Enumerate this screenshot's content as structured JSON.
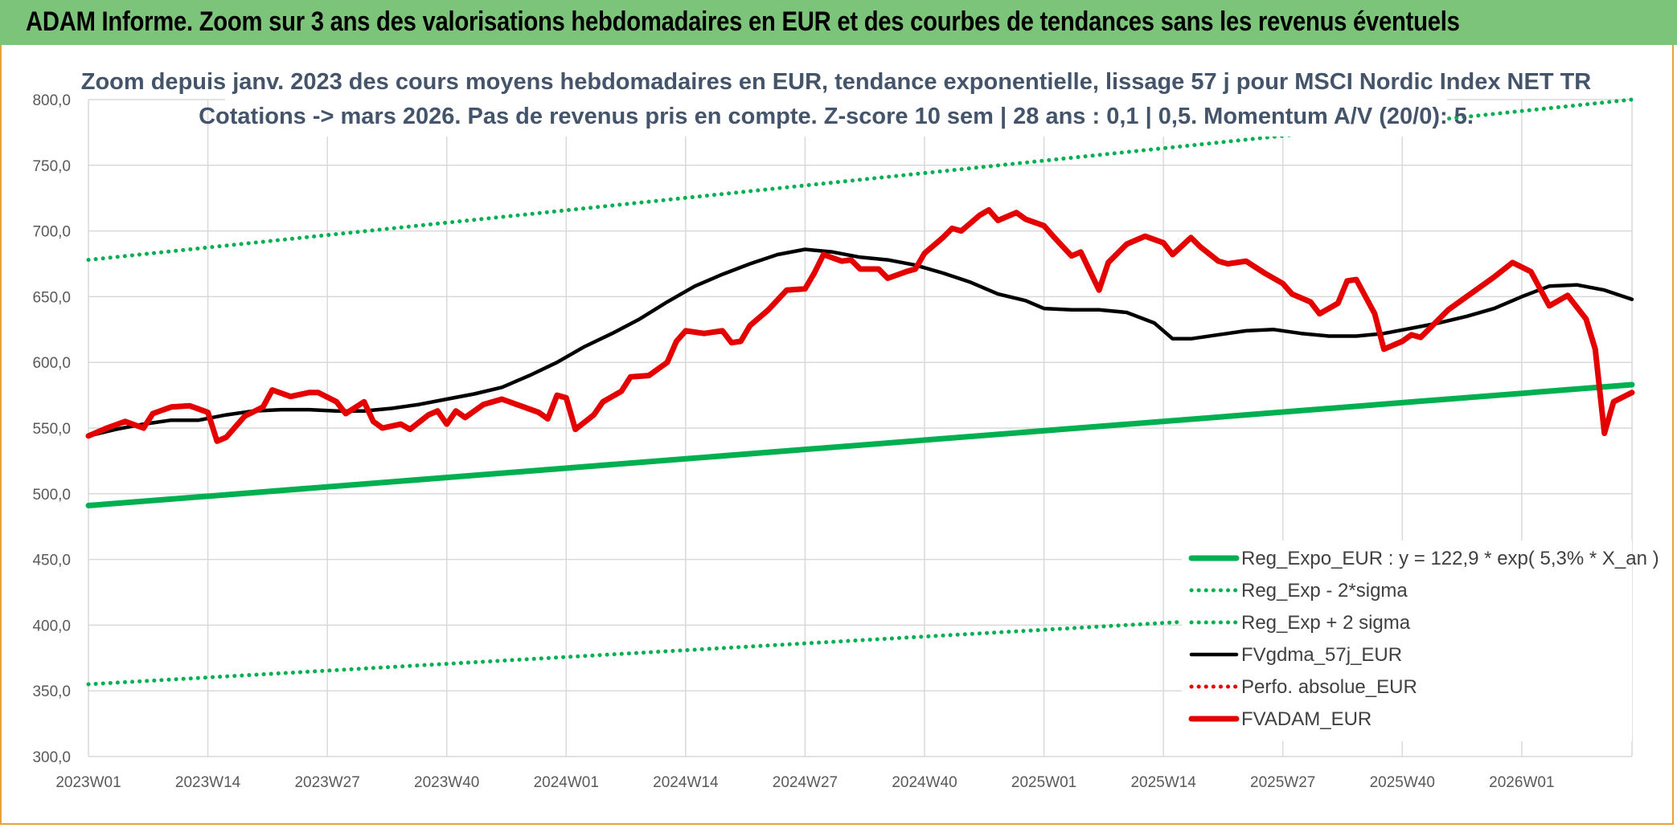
{
  "banner": {
    "title": "ADAM Informe. Zoom sur 3 ans des valorisations hebdomadaires en EUR et des courbes de tendances sans les revenus éventuels"
  },
  "colors": {
    "banner_bg": "#7cc47a",
    "frame_border": "#e8a33a",
    "trend": "#00b050",
    "fvadam": "#e50000",
    "fvgdma": "#000000",
    "perfo": "#e50000",
    "grid": "#d9d9d9",
    "title_text": "#44546a"
  },
  "chart_data": {
    "type": "line",
    "title_lines": [
      "Zoom depuis janv. 2023 des cours moyens hebdomadaires en EUR, tendance exponentielle, lissage 57 j pour MSCI Nordic Index NET TR",
      "Cotations -> mars 2026. Pas de revenus pris en compte. Z-score 10 sem | 28 ans : 0,1 | 0,5. Momentum A/V (20/0): 5."
    ],
    "x_ticks": [
      "2023W01",
      "2023W14",
      "2023W27",
      "2023W40",
      "2024W01",
      "2024W14",
      "2024W27",
      "2024W40",
      "2025W01",
      "2025W14",
      "2025W27",
      "2025W40",
      "2026W01"
    ],
    "x_tick_week_index": [
      0,
      13,
      26,
      39,
      52,
      65,
      78,
      91,
      104,
      117,
      130,
      143,
      156
    ],
    "x_week_count": 169,
    "y_ticks": [
      "800,0",
      "750,0",
      "700,0",
      "650,0",
      "600,0",
      "550,0",
      "500,0",
      "450,0",
      "400,0",
      "350,0",
      "300,0"
    ],
    "ylim": [
      300,
      800
    ],
    "grid": true,
    "legend_position": "bottom-right",
    "legend": [
      {
        "label": "Reg_Expo_EUR : y = 122,9 * exp( 5,3% *  X_an )",
        "color": "#00b050",
        "style": "solid-thick",
        "icon": "thick-solid-line"
      },
      {
        "label": "Reg_Exp - 2*sigma",
        "color": "#00b050",
        "style": "dotted",
        "icon": "dotted-line"
      },
      {
        "label": "Reg_Exp + 2 sigma",
        "color": "#00b050",
        "style": "dotted",
        "icon": "dotted-line"
      },
      {
        "label": "FVgdma_57j_EUR",
        "color": "#000000",
        "style": "solid",
        "icon": "solid-line"
      },
      {
        "label": "Perfo. absolue_EUR",
        "color": "#e50000",
        "style": "dotted",
        "icon": "dotted-line"
      },
      {
        "label": "FVADAM_EUR",
        "color": "#e50000",
        "style": "solid-thick",
        "icon": "thick-solid-line"
      }
    ],
    "series": [
      {
        "name": "Reg_Expo_EUR : y = 122,9 * exp( 5,3% *  X_an )",
        "color": "#00b050",
        "style": "solid-thick",
        "points": [
          [
            0,
            491
          ],
          [
            168,
            583
          ]
        ]
      },
      {
        "name": "Reg_Exp - 2*sigma",
        "color": "#00b050",
        "style": "dotted",
        "points": [
          [
            0,
            355
          ],
          [
            168,
            422
          ]
        ]
      },
      {
        "name": "Reg_Exp + 2 sigma",
        "color": "#00b050",
        "style": "dotted",
        "points": [
          [
            0,
            678
          ],
          [
            168,
            800
          ]
        ]
      },
      {
        "name": "FVgdma_57j_EUR",
        "color": "#000000",
        "style": "solid",
        "points": [
          [
            0,
            544
          ],
          [
            3,
            549
          ],
          [
            6,
            553
          ],
          [
            9,
            556
          ],
          [
            12,
            556
          ],
          [
            15,
            560
          ],
          [
            18,
            563
          ],
          [
            21,
            564
          ],
          [
            24,
            564
          ],
          [
            27,
            563
          ],
          [
            30,
            563
          ],
          [
            33,
            565
          ],
          [
            36,
            568
          ],
          [
            39,
            572
          ],
          [
            42,
            576
          ],
          [
            45,
            581
          ],
          [
            48,
            590
          ],
          [
            51,
            600
          ],
          [
            54,
            612
          ],
          [
            57,
            622
          ],
          [
            60,
            633
          ],
          [
            63,
            646
          ],
          [
            66,
            658
          ],
          [
            69,
            667
          ],
          [
            72,
            675
          ],
          [
            75,
            682
          ],
          [
            78,
            686
          ],
          [
            81,
            684
          ],
          [
            84,
            680
          ],
          [
            87,
            678
          ],
          [
            90,
            674
          ],
          [
            93,
            668
          ],
          [
            96,
            661
          ],
          [
            99,
            652
          ],
          [
            102,
            647
          ],
          [
            104,
            641
          ],
          [
            107,
            640
          ],
          [
            110,
            640
          ],
          [
            113,
            638
          ],
          [
            116,
            630
          ],
          [
            118,
            618
          ],
          [
            120,
            618
          ],
          [
            123,
            621
          ],
          [
            126,
            624
          ],
          [
            129,
            625
          ],
          [
            132,
            622
          ],
          [
            135,
            620
          ],
          [
            138,
            620
          ],
          [
            141,
            622
          ],
          [
            144,
            626
          ],
          [
            147,
            630
          ],
          [
            150,
            635
          ],
          [
            153,
            641
          ],
          [
            156,
            650
          ],
          [
            159,
            658
          ],
          [
            162,
            659
          ],
          [
            165,
            655
          ],
          [
            168,
            648
          ]
        ]
      },
      {
        "name": "FVADAM_EUR",
        "color": "#e50000",
        "style": "solid-thick",
        "points": [
          [
            0,
            544
          ],
          [
            2,
            550
          ],
          [
            4,
            555
          ],
          [
            6,
            550
          ],
          [
            7,
            561
          ],
          [
            9,
            566
          ],
          [
            11,
            567
          ],
          [
            13,
            562
          ],
          [
            14,
            540
          ],
          [
            15,
            543
          ],
          [
            17,
            559
          ],
          [
            19,
            566
          ],
          [
            20,
            579
          ],
          [
            22,
            574
          ],
          [
            24,
            577
          ],
          [
            25,
            577
          ],
          [
            27,
            570
          ],
          [
            28,
            561
          ],
          [
            30,
            570
          ],
          [
            31,
            555
          ],
          [
            32,
            550
          ],
          [
            34,
            553
          ],
          [
            35,
            549
          ],
          [
            37,
            560
          ],
          [
            38,
            563
          ],
          [
            39,
            553
          ],
          [
            40,
            563
          ],
          [
            41,
            558
          ],
          [
            43,
            568
          ],
          [
            45,
            572
          ],
          [
            47,
            567
          ],
          [
            49,
            562
          ],
          [
            50,
            557
          ],
          [
            51,
            575
          ],
          [
            52,
            573
          ],
          [
            53,
            549
          ],
          [
            55,
            560
          ],
          [
            56,
            570
          ],
          [
            58,
            578
          ],
          [
            59,
            589
          ],
          [
            61,
            590
          ],
          [
            63,
            600
          ],
          [
            64,
            616
          ],
          [
            65,
            624
          ],
          [
            67,
            622
          ],
          [
            69,
            624
          ],
          [
            70,
            615
          ],
          [
            71,
            616
          ],
          [
            72,
            628
          ],
          [
            74,
            640
          ],
          [
            76,
            655
          ],
          [
            78,
            656
          ],
          [
            79,
            668
          ],
          [
            80,
            682
          ],
          [
            82,
            677
          ],
          [
            83,
            678
          ],
          [
            84,
            671
          ],
          [
            86,
            671
          ],
          [
            87,
            664
          ],
          [
            89,
            669
          ],
          [
            90,
            671
          ],
          [
            91,
            683
          ],
          [
            93,
            695
          ],
          [
            94,
            702
          ],
          [
            95,
            700
          ],
          [
            97,
            712
          ],
          [
            98,
            716
          ],
          [
            99,
            708
          ],
          [
            101,
            714
          ],
          [
            102,
            709
          ],
          [
            104,
            704
          ],
          [
            105,
            696
          ],
          [
            107,
            681
          ],
          [
            108,
            684
          ],
          [
            110,
            655
          ],
          [
            111,
            676
          ],
          [
            113,
            690
          ],
          [
            115,
            696
          ],
          [
            117,
            691
          ],
          [
            118,
            682
          ],
          [
            120,
            695
          ],
          [
            121,
            688
          ],
          [
            123,
            677
          ],
          [
            124,
            675
          ],
          [
            126,
            677
          ],
          [
            128,
            668
          ],
          [
            130,
            660
          ],
          [
            131,
            652
          ],
          [
            133,
            646
          ],
          [
            134,
            637
          ],
          [
            136,
            645
          ],
          [
            137,
            662
          ],
          [
            138,
            663
          ],
          [
            140,
            637
          ],
          [
            141,
            610
          ],
          [
            143,
            616
          ],
          [
            144,
            621
          ],
          [
            145,
            619
          ],
          [
            146,
            626
          ],
          [
            148,
            640
          ],
          [
            150,
            650
          ],
          [
            153,
            665
          ],
          [
            155,
            676
          ],
          [
            157,
            669
          ],
          [
            159,
            643
          ],
          [
            161,
            651
          ],
          [
            163,
            633
          ],
          [
            164,
            610
          ],
          [
            165,
            546
          ],
          [
            166,
            570
          ],
          [
            168,
            577
          ]
        ]
      }
    ]
  }
}
